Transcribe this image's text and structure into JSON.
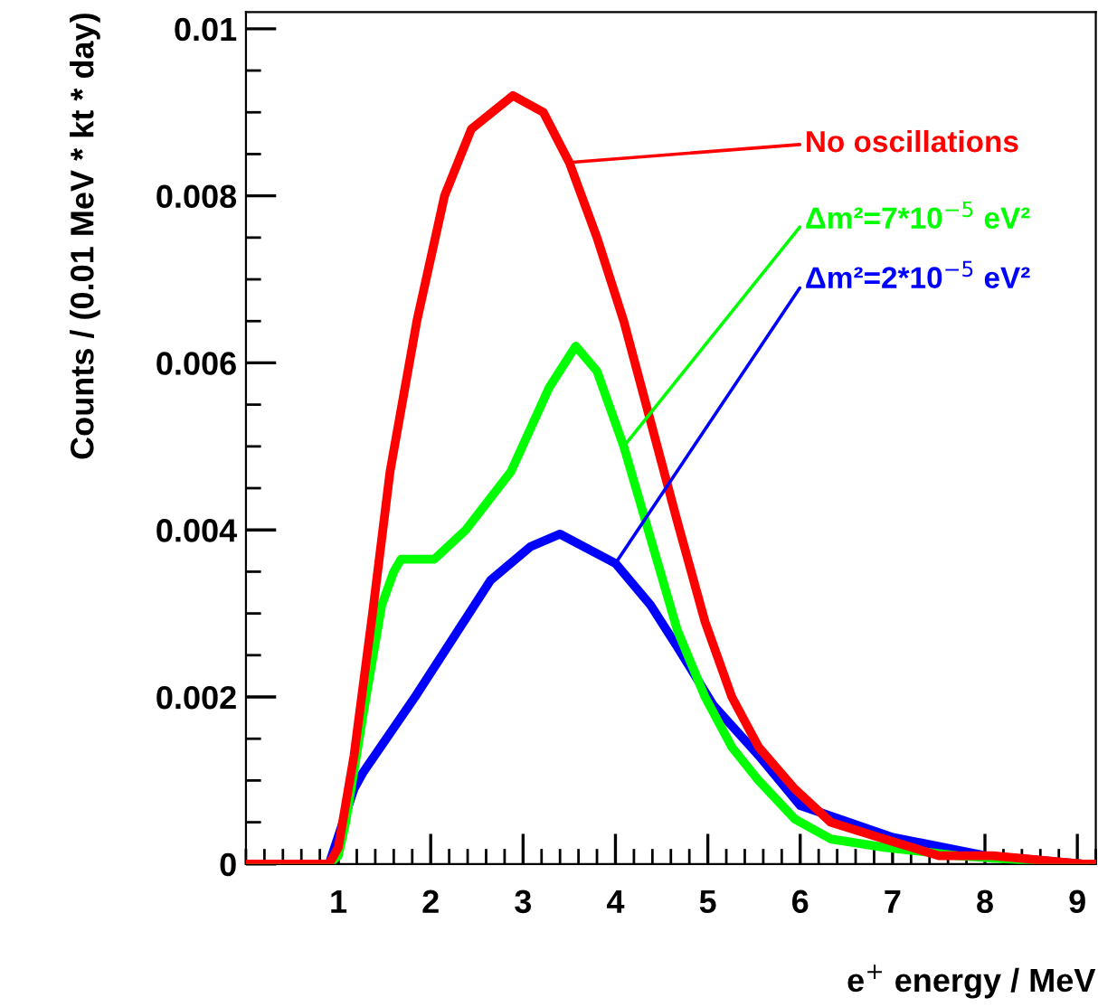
{
  "chart_data": {
    "type": "line",
    "xlabel": "e$^{+}$ energy / MeV",
    "ylabel": "Counts / (0.01 MeV * kt * day)",
    "xlim": [
      0,
      9.2
    ],
    "ylim": [
      0,
      0.0102
    ],
    "xticks": [
      1,
      2,
      3,
      4,
      5,
      6,
      7,
      8,
      9
    ],
    "yticks": [
      0,
      0.002,
      0.004,
      0.006,
      0.008,
      0.01
    ],
    "grid": false,
    "legend": false,
    "marker": "none",
    "line_style": "solid",
    "series": [
      {
        "name": "No oscillations",
        "color": "#ff0000",
        "x": [
          0,
          0.9,
          1.0,
          1.17,
          1.37,
          1.56,
          1.85,
          2.15,
          2.44,
          2.89,
          3.22,
          3.5,
          3.8,
          4.09,
          4.38,
          4.67,
          4.97,
          5.26,
          5.55,
          5.94,
          6.33,
          6.91,
          7.5,
          8.08,
          9.06,
          9.2
        ],
        "values": [
          0,
          0,
          0.0002,
          0.0013,
          0.003,
          0.0047,
          0.0065,
          0.008,
          0.0088,
          0.0092,
          0.009,
          0.0084,
          0.0075,
          0.0065,
          0.0053,
          0.0041,
          0.0029,
          0.002,
          0.0014,
          0.0009,
          0.0005,
          0.0003,
          0.0001,
          0.0001,
          0,
          0
        ]
      },
      {
        "name": "Δm²=7*10$^{−5}$ eV²",
        "color": "#00ff00",
        "x": [
          0,
          0.9,
          1.0,
          1.08,
          1.27,
          1.47,
          1.6,
          1.68,
          2.04,
          2.38,
          2.87,
          3.28,
          3.57,
          3.8,
          4.09,
          4.38,
          4.67,
          4.97,
          5.26,
          5.55,
          5.94,
          6.33,
          6.91,
          7.7,
          9.06,
          9.2
        ],
        "values": [
          0,
          0,
          0.0001,
          0.0005,
          0.0018,
          0.0031,
          0.0035,
          0.00365,
          0.00365,
          0.004,
          0.0047,
          0.0057,
          0.0062,
          0.0059,
          0.005,
          0.0039,
          0.0028,
          0.002,
          0.0014,
          0.001,
          0.00054,
          0.0003,
          0.0002,
          0.0001,
          0,
          0
        ]
      },
      {
        "name": "Δm²=2*10$^{−5}$ eV²",
        "color": "#0000ff",
        "x": [
          0,
          0.9,
          1.17,
          1.27,
          1.83,
          2.24,
          2.65,
          3.08,
          3.4,
          4.0,
          4.38,
          4.67,
          5.06,
          5.55,
          6.0,
          7.0,
          8.0,
          9.06,
          9.2
        ],
        "values": [
          0,
          0,
          0.0009,
          0.0011,
          0.002,
          0.0027,
          0.0034,
          0.0038,
          0.00395,
          0.0036,
          0.0031,
          0.0026,
          0.0019,
          0.0013,
          0.0007,
          0.00032,
          0.0001,
          0,
          0
        ]
      }
    ]
  }
}
